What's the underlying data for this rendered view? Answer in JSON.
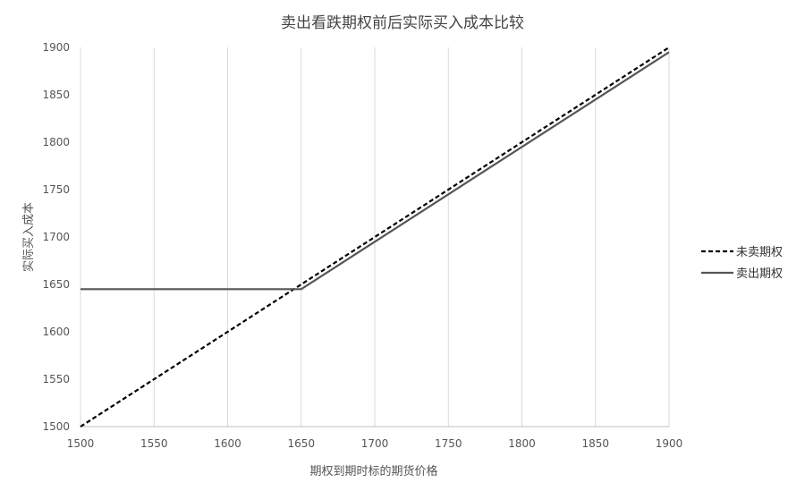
{
  "chart_data": {
    "type": "line",
    "title": "卖出看跌期权前后实际买入成本比较",
    "xlabel": "期权到期时标的期货价格",
    "ylabel": "实际买入成本",
    "xlim": [
      1500,
      1900
    ],
    "ylim": [
      1500,
      1900
    ],
    "x_ticks": [
      1500,
      1550,
      1600,
      1650,
      1700,
      1750,
      1800,
      1850,
      1900
    ],
    "y_ticks": [
      1500,
      1550,
      1600,
      1650,
      1700,
      1750,
      1800,
      1850,
      1900
    ],
    "grid": "vertical",
    "legend_position": "right",
    "series": [
      {
        "name": "未卖期权",
        "style": "dashed",
        "color": "#000000",
        "x": [
          1500,
          1900
        ],
        "y": [
          1500,
          1900
        ]
      },
      {
        "name": "卖出期权",
        "style": "solid",
        "color": "#555555",
        "x": [
          1500,
          1650,
          1900
        ],
        "y": [
          1645,
          1645,
          1895
        ]
      }
    ]
  }
}
